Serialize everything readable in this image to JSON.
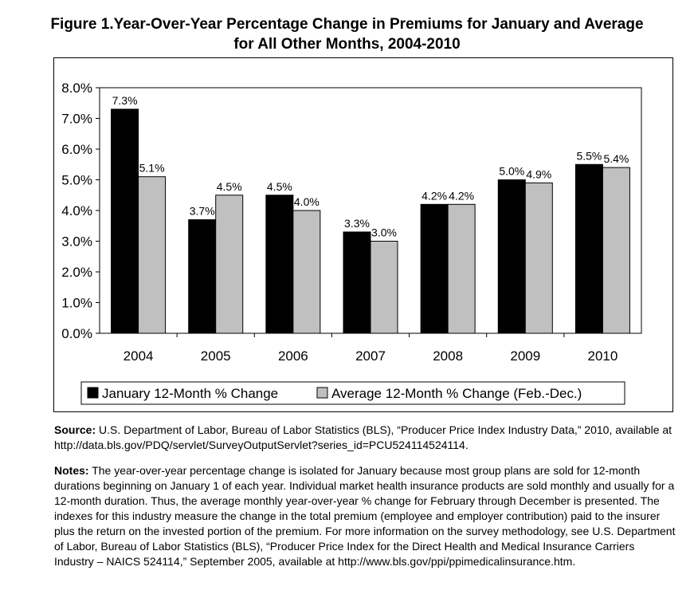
{
  "title_line1": "Figure 1.Year-Over-Year Percentage Change in Premiums for January and Average",
  "title_line2": "for All Other Months, 2004-2010",
  "chart_data": {
    "type": "bar",
    "categories": [
      "2004",
      "2005",
      "2006",
      "2007",
      "2008",
      "2009",
      "2010"
    ],
    "series": [
      {
        "name": "January 12-Month % Change",
        "color": "#000000",
        "values": [
          7.3,
          3.7,
          4.5,
          3.3,
          4.2,
          5.0,
          5.5
        ],
        "labels": [
          "7.3%",
          "3.7%",
          "4.5%",
          "3.3%",
          "4.2%",
          "5.0%",
          "5.5%"
        ]
      },
      {
        "name": "Average 12-Month % Change (Feb.-Dec.)",
        "color": "#c0c0c0",
        "values": [
          5.1,
          4.5,
          4.0,
          3.0,
          4.2,
          4.9,
          5.4
        ],
        "labels": [
          "5.1%",
          "4.5%",
          "4.0%",
          "3.0%",
          "4.2%",
          "4.9%",
          "5.4%"
        ]
      }
    ],
    "ylim": [
      0,
      8
    ],
    "yticks": [
      "0.0%",
      "1.0%",
      "2.0%",
      "3.0%",
      "4.0%",
      "5.0%",
      "6.0%",
      "7.0%",
      "8.0%"
    ],
    "legend_position": "bottom",
    "grid": false
  },
  "source": {
    "label": "Source:",
    "text": " U.S. Department of Labor, Bureau of Labor Statistics (BLS), “Producer Price Index Industry Data,” 2010, available at http://data.bls.gov/PDQ/servlet/SurveyOutputServlet?series_id=PCU524114524114."
  },
  "notes": {
    "label": "Notes:",
    "text": " The year-over-year percentage change is isolated for January because most group plans are sold for 12-month durations beginning on January 1 of each year. Individual market health insurance products are sold monthly and usually for a 12-month duration. Thus, the average monthly year-over-year % change for February through December is presented. The indexes for this industry measure the change in the total premium (employee and employer contribution) paid to the insurer plus the return on the invested portion of the premium. For more information on the survey methodology, see U.S. Department of Labor, Bureau of Labor Statistics (BLS), “Producer Price Index for the Direct Health and Medical Insurance Carriers Industry – NAICS 524114,” September 2005, available at http://www.bls.gov/ppi/ppimedicalinsurance.htm."
  }
}
